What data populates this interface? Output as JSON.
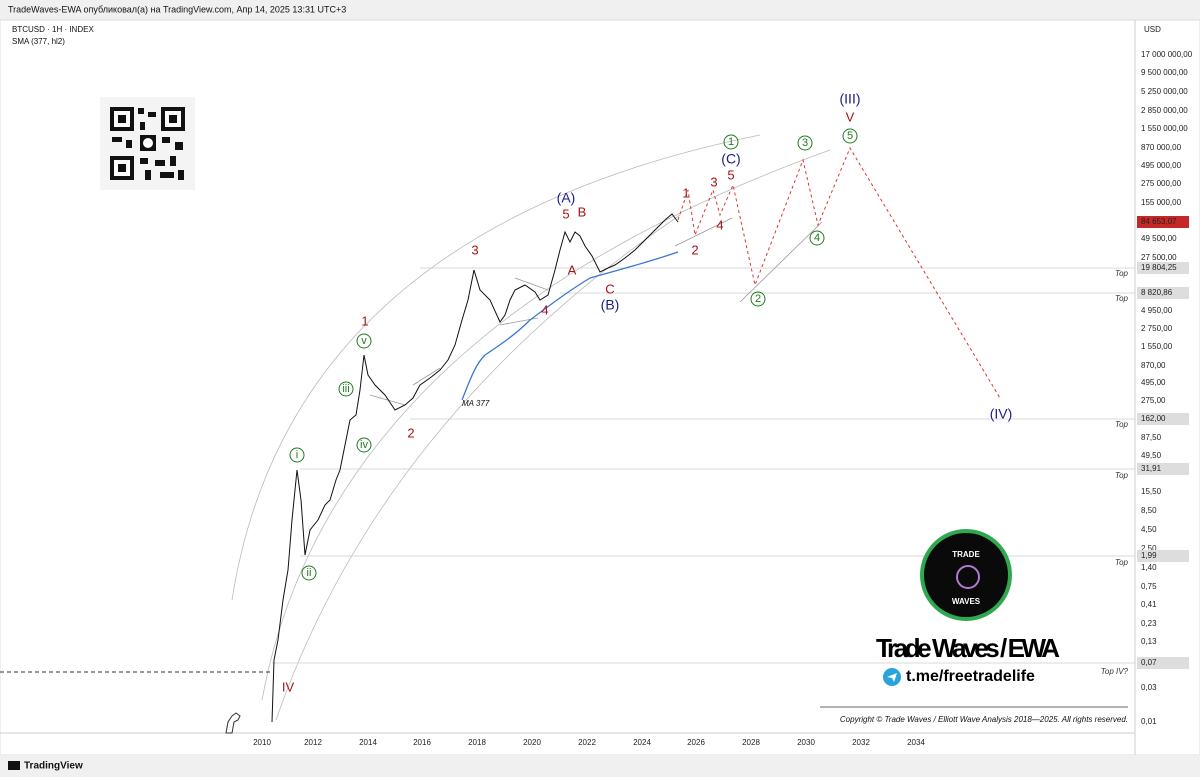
{
  "header": {
    "publisher": "TradeWaves-EWA опубликовал(а) на TradingView.com, Апр 14, 2025 13:31 UTC+3"
  },
  "legend": {
    "symbol": "BTCUSD · 1H · INDEX",
    "indicator": "SMA (377, hl2)"
  },
  "price_axis": {
    "currency": "USD",
    "labels": [
      "17 000 000,00",
      "9 500 000,00",
      "5 250 000,00",
      "2 850 000,00",
      "1 550 000,00",
      "870 000,00",
      "495 000,00",
      "275 000,00",
      "155 000,00",
      "84 653,07",
      "49 500,00",
      "27 500,00",
      "19 804,25",
      "8 820,86",
      "4 950,00",
      "2 750,00",
      "1 550,00",
      "870,00",
      "495,00",
      "275,00",
      "162,00",
      "87,50",
      "49,50",
      "31,91",
      "15,50",
      "8,50",
      "4,50",
      "2,50",
      "1,99",
      "1,40",
      "0,75",
      "0,41",
      "0,23",
      "0,13",
      "0,07",
      "0,03",
      "0,01"
    ]
  },
  "time_axis": {
    "labels": [
      "2010",
      "2012",
      "2014",
      "2016",
      "2018",
      "2020",
      "2022",
      "2024",
      "2026",
      "2028",
      "2030",
      "2032",
      "2034"
    ]
  },
  "levels": [
    "Top",
    "Top",
    "Top",
    "Top",
    "Top",
    "Top IV?"
  ],
  "ma_label": "MA 377",
  "waves": [
    "1",
    "v",
    "iii",
    "iv",
    "i",
    "ii",
    "2",
    "3",
    "4",
    "(A)",
    "5",
    "B",
    "A",
    "C",
    "(B)",
    "1",
    "(C)",
    "1",
    "2",
    "3",
    "5",
    "4",
    "3",
    "5",
    "V",
    "(III)",
    "4",
    "2",
    "(IV)",
    "IV"
  ],
  "branding": {
    "logo_top": "TRADE",
    "logo_bottom": "WAVES",
    "title": "Trade Waves / EWA",
    "link": "t.me/freetradelife",
    "copyright": "Copyright © Trade Waves / Elliott Wave Analysis 2018—2025. All rights reserved."
  },
  "footer": {
    "brand": "TradingView"
  }
}
